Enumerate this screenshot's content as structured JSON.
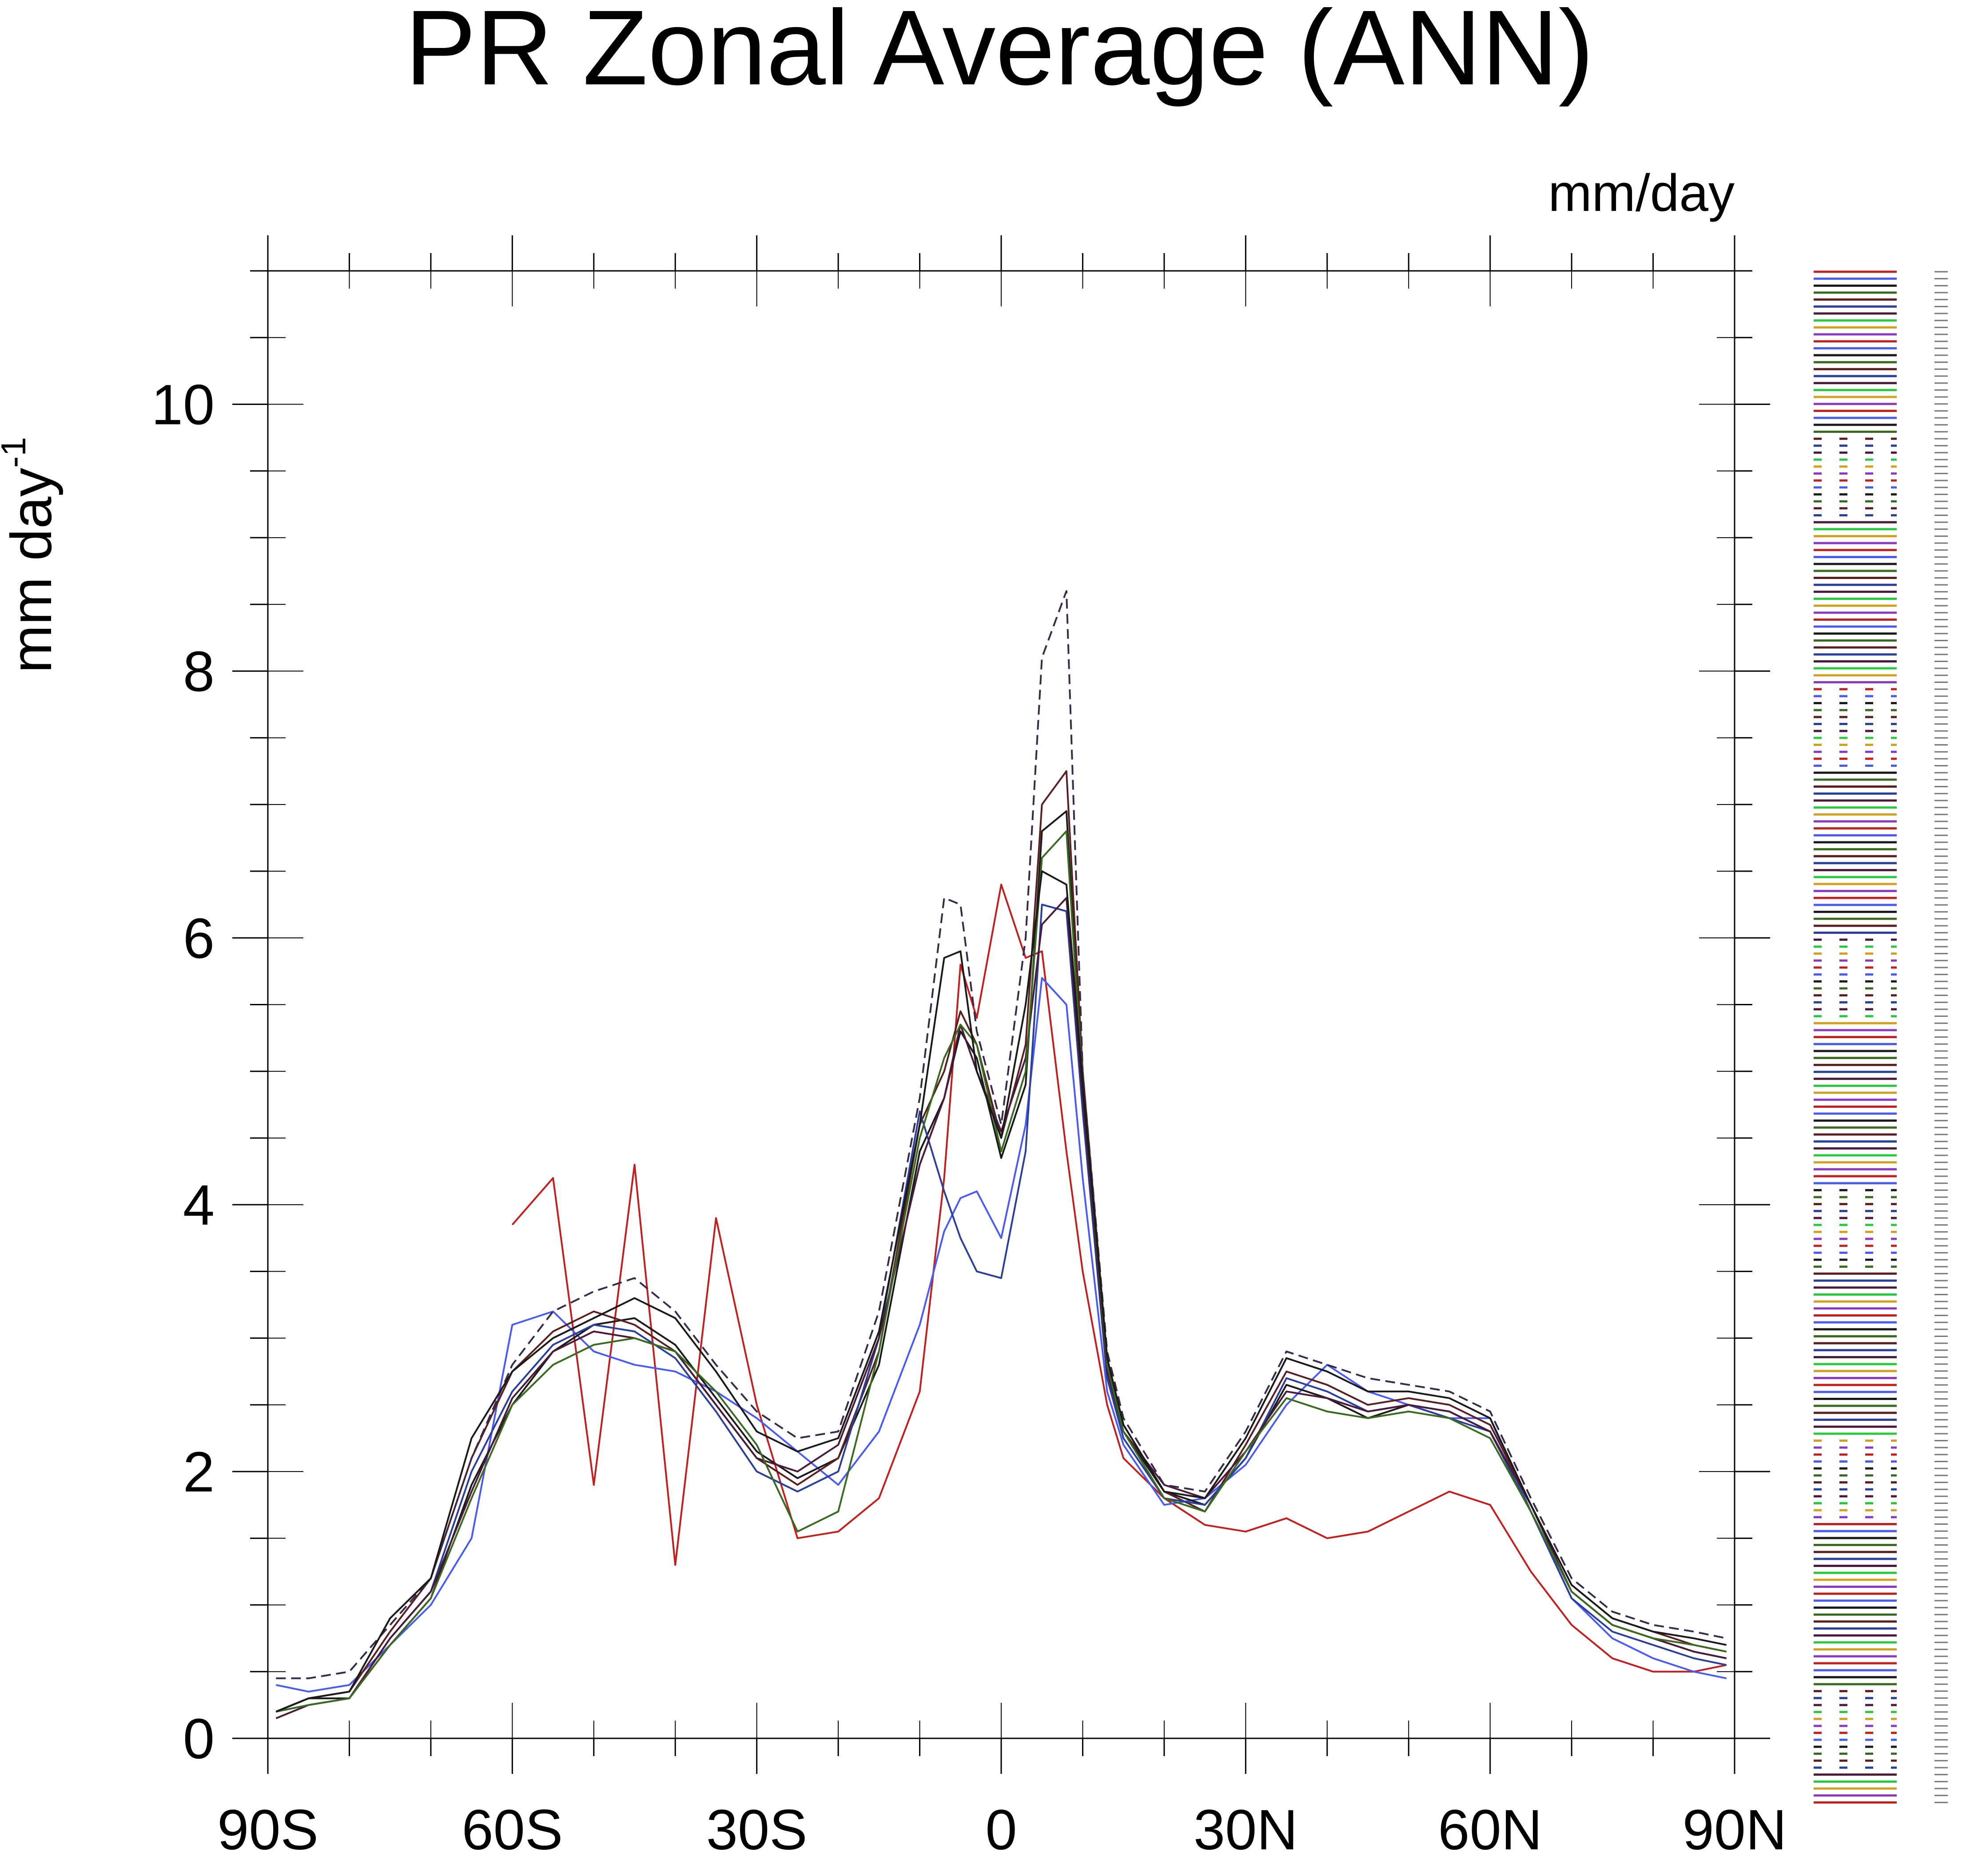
{
  "chart_data": {
    "type": "line",
    "title": "PR Zonal Average (ANN)",
    "units_label": "mm/day",
    "ylabel": "mm day",
    "ylabel_superscript": "-1",
    "xlim": [
      -90,
      90
    ],
    "ylim": [
      0,
      11
    ],
    "grid": false,
    "legend_position": "right",
    "x_ticks": [
      {
        "value": -90,
        "label": "90S"
      },
      {
        "value": -60,
        "label": "60S"
      },
      {
        "value": -30,
        "label": "30S"
      },
      {
        "value": 0,
        "label": "0"
      },
      {
        "value": 30,
        "label": "30N"
      },
      {
        "value": 60,
        "label": "60N"
      },
      {
        "value": 90,
        "label": "90N"
      }
    ],
    "y_ticks": [
      {
        "value": 0,
        "label": "0"
      },
      {
        "value": 2,
        "label": "2"
      },
      {
        "value": 4,
        "label": "4"
      },
      {
        "value": 6,
        "label": "6"
      },
      {
        "value": 8,
        "label": "8"
      },
      {
        "value": 10,
        "label": "10"
      }
    ],
    "x": [
      -89,
      -85,
      -80,
      -75,
      -70,
      -65,
      -60,
      -55,
      -50,
      -45,
      -40,
      -35,
      -30,
      -25,
      -20,
      -15,
      -10,
      -7,
      -5,
      -3,
      0,
      3,
      5,
      8,
      10,
      13,
      15,
      20,
      25,
      30,
      35,
      40,
      45,
      50,
      55,
      60,
      65,
      70,
      75,
      80,
      85,
      89
    ],
    "series": [
      {
        "color": "#c0201e",
        "values": [
          null,
          null,
          null,
          null,
          null,
          null,
          3.85,
          4.2,
          1.9,
          4.3,
          1.3,
          3.9,
          2.5,
          1.5,
          1.55,
          1.8,
          2.6,
          4.2,
          5.8,
          5.4,
          6.4,
          5.85,
          5.9,
          4.4,
          3.5,
          2.5,
          2.1,
          1.8,
          1.6,
          1.55,
          1.65,
          1.5,
          1.55,
          1.7,
          1.85,
          1.75,
          1.25,
          0.85,
          0.6,
          0.5,
          0.5,
          0.55
        ]
      },
      {
        "color": "#4a5cf0",
        "values": [
          0.4,
          0.35,
          0.4,
          0.7,
          1.0,
          1.5,
          3.1,
          3.2,
          2.9,
          2.8,
          2.75,
          2.6,
          2.4,
          2.15,
          1.9,
          2.3,
          3.1,
          3.8,
          4.05,
          4.1,
          3.75,
          4.6,
          5.7,
          5.5,
          4.2,
          2.6,
          2.2,
          1.75,
          1.8,
          2.05,
          2.5,
          2.8,
          2.6,
          2.5,
          2.4,
          2.4,
          1.7,
          1.05,
          0.75,
          0.6,
          0.5,
          0.45
        ]
      },
      {
        "color": "#1a1a1a",
        "values": [
          0.2,
          0.3,
          0.3,
          0.7,
          1.05,
          1.9,
          2.5,
          2.9,
          3.1,
          3.15,
          2.95,
          2.55,
          2.15,
          1.95,
          2.1,
          2.8,
          4.4,
          4.8,
          5.3,
          5.1,
          4.35,
          4.9,
          6.8,
          6.95,
          4.9,
          2.8,
          2.3,
          1.85,
          1.75,
          2.1,
          2.65,
          2.55,
          2.4,
          2.5,
          2.45,
          2.3,
          1.7,
          1.1,
          0.85,
          0.75,
          0.65,
          0.6
        ]
      },
      {
        "color": "#5a2020",
        "values": [
          0.2,
          0.3,
          0.35,
          0.8,
          1.2,
          2.1,
          2.75,
          3.05,
          3.2,
          3.1,
          2.9,
          2.5,
          2.1,
          1.9,
          2.1,
          2.9,
          4.6,
          5.0,
          5.45,
          5.2,
          4.5,
          5.2,
          7.0,
          7.25,
          5.0,
          2.85,
          2.35,
          1.85,
          1.7,
          2.2,
          2.75,
          2.65,
          2.5,
          2.55,
          2.5,
          2.35,
          1.75,
          1.15,
          0.9,
          0.8,
          0.7,
          0.65
        ]
      },
      {
        "color": "#2a3f9a",
        "values": [
          0.2,
          0.25,
          0.3,
          0.75,
          1.1,
          2.0,
          2.6,
          2.95,
          3.1,
          3.05,
          2.85,
          2.45,
          2.0,
          1.85,
          2.0,
          3.0,
          4.7,
          4.1,
          3.75,
          3.5,
          3.45,
          4.4,
          6.25,
          6.2,
          4.7,
          2.7,
          2.25,
          1.8,
          1.75,
          2.1,
          2.7,
          2.6,
          2.45,
          2.5,
          2.4,
          2.3,
          1.7,
          1.05,
          0.8,
          0.7,
          0.6,
          0.55
        ]
      },
      {
        "color": "#4a1a3a",
        "values": [
          0.15,
          0.25,
          0.3,
          0.75,
          1.1,
          1.85,
          2.55,
          2.9,
          3.05,
          3.0,
          2.9,
          2.5,
          2.1,
          2.0,
          2.2,
          3.0,
          4.3,
          4.8,
          5.35,
          5.0,
          4.55,
          5.1,
          6.1,
          6.3,
          4.8,
          2.75,
          2.3,
          1.9,
          1.8,
          2.15,
          2.6,
          2.55,
          2.45,
          2.5,
          2.45,
          2.3,
          1.75,
          1.1,
          0.85,
          0.75,
          0.65,
          0.6
        ]
      },
      {
        "color": "#3a6a20",
        "values": [
          0.2,
          0.25,
          0.3,
          0.7,
          1.05,
          1.8,
          2.5,
          2.8,
          2.95,
          3.0,
          2.9,
          2.6,
          2.2,
          1.55,
          1.7,
          2.9,
          4.5,
          5.1,
          5.35,
          5.2,
          4.4,
          5.0,
          6.6,
          6.8,
          4.9,
          2.8,
          2.3,
          1.8,
          1.7,
          2.15,
          2.55,
          2.45,
          2.4,
          2.45,
          2.4,
          2.25,
          1.7,
          1.1,
          0.85,
          0.75,
          0.7,
          0.65
        ]
      },
      {
        "color": "#3a2a4a",
        "dash": "22,12",
        "values": [
          0.45,
          0.45,
          0.5,
          0.85,
          1.2,
          2.1,
          2.8,
          3.2,
          3.35,
          3.45,
          3.2,
          2.8,
          2.45,
          2.25,
          2.3,
          3.2,
          4.8,
          6.3,
          6.25,
          5.3,
          4.6,
          6.0,
          8.1,
          8.6,
          5.0,
          2.9,
          2.4,
          1.9,
          1.85,
          2.3,
          2.9,
          2.8,
          2.7,
          2.65,
          2.6,
          2.45,
          1.8,
          1.2,
          0.95,
          0.85,
          0.8,
          0.75
        ]
      },
      {
        "color": "#1a1a1a",
        "values": [
          0.2,
          0.3,
          0.35,
          0.9,
          1.2,
          2.25,
          2.75,
          3.0,
          3.15,
          3.3,
          3.15,
          2.75,
          2.3,
          2.15,
          2.25,
          3.05,
          4.6,
          5.85,
          5.9,
          5.0,
          4.5,
          5.5,
          6.5,
          6.4,
          4.9,
          2.85,
          2.35,
          1.85,
          1.8,
          2.25,
          2.85,
          2.75,
          2.6,
          2.6,
          2.55,
          2.4,
          1.75,
          1.15,
          0.9,
          0.8,
          0.75,
          0.7
        ]
      }
    ],
    "legend": {
      "entry_count": 221
    }
  }
}
